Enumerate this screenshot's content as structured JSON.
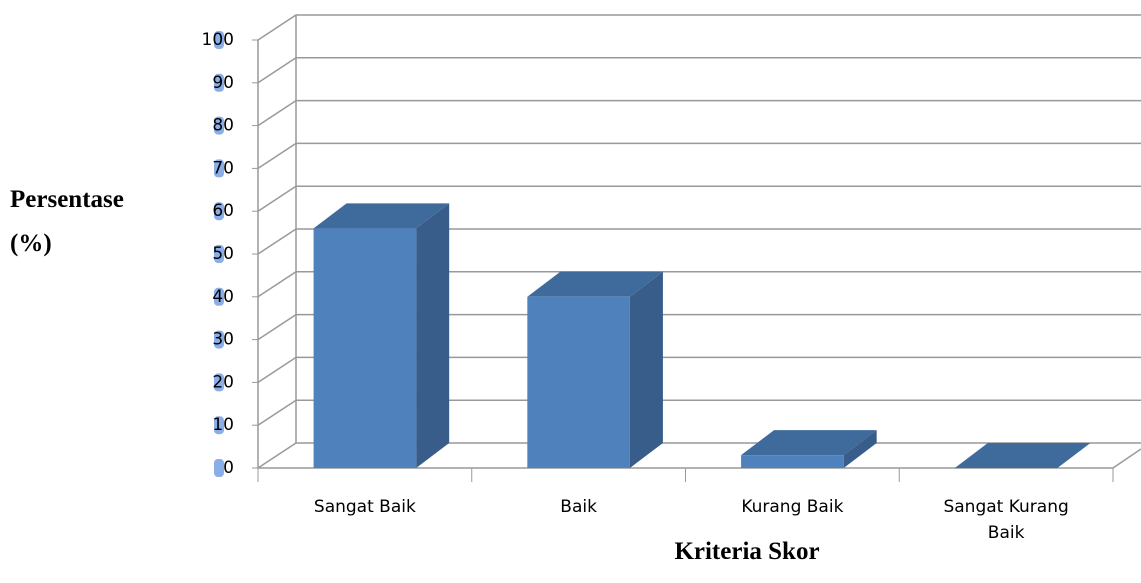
{
  "chart_data": {
    "type": "bar3d",
    "x_label": "Kriteria Skor",
    "y_label": "Persentase (%)",
    "categories": [
      "Sangat Baik",
      "Baik",
      "Kurang Baik",
      "Sangat Kurang Baik"
    ],
    "values": [
      56,
      40,
      3,
      0
    ],
    "color": "#4f81bd",
    "ylim": [
      0,
      100
    ],
    "yticks": [
      0,
      10,
      20,
      30,
      40,
      50,
      60,
      70,
      80,
      90,
      100
    ],
    "grid": true
  }
}
